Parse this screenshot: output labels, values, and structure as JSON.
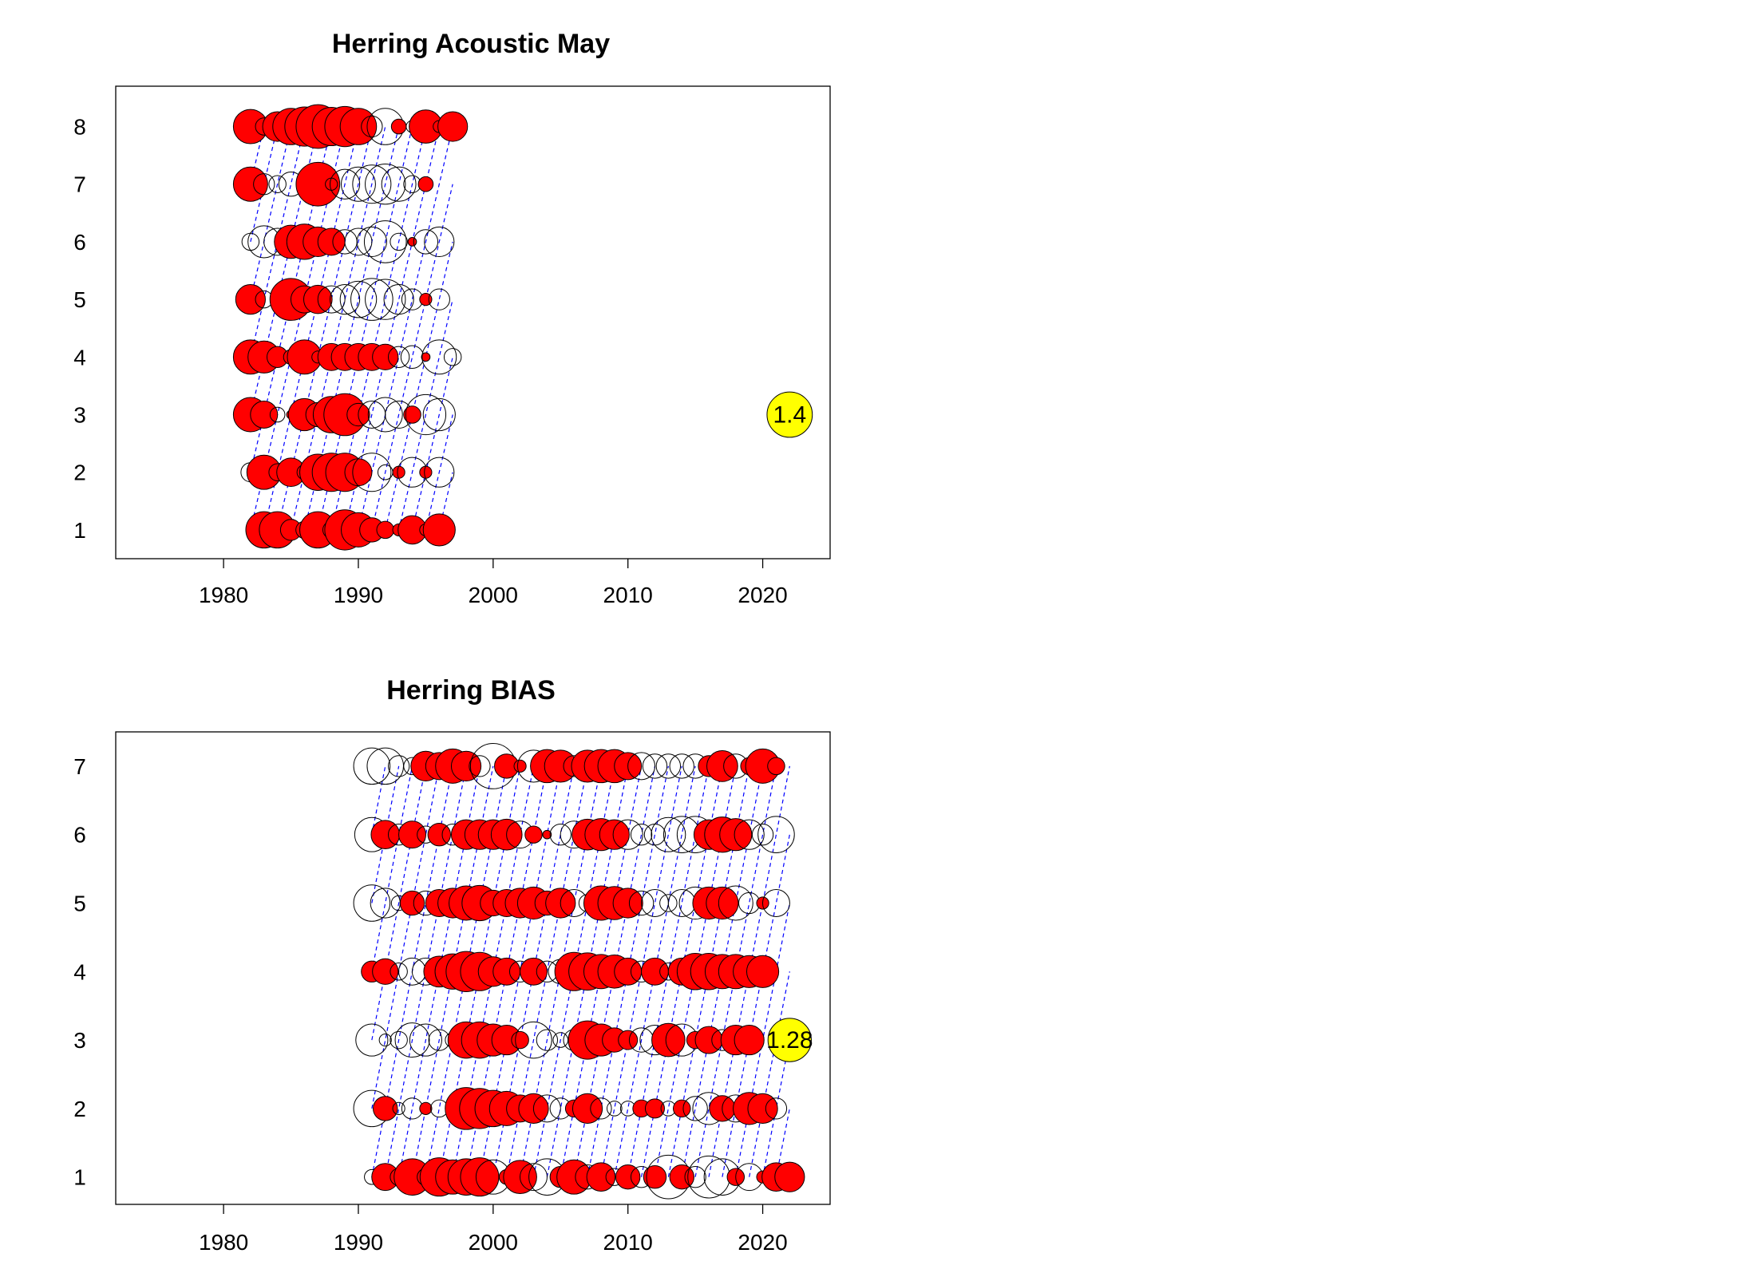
{
  "chart_data": [
    {
      "type": "scatter",
      "subtype": "bubble",
      "title": "Herring Acoustic May",
      "xlim": [
        1972,
        2025
      ],
      "ylim": [
        0.5,
        8.7
      ],
      "x_ticks": [
        1980,
        1990,
        2000,
        2010,
        2020
      ],
      "y_ticks": [
        1,
        2,
        3,
        4,
        5,
        6,
        7,
        8
      ],
      "positive_color": "#ff0000",
      "negative_color": "#ffffff",
      "cohort_line_color": "#0000ff",
      "reference_bubble": {
        "x": 2022,
        "y": 3,
        "value": 1.4,
        "label": "1.4",
        "color": "#ffff00"
      },
      "rows": {
        "1": [
          0.05,
          0.9,
          0.9,
          0.3,
          0.2,
          0.9,
          0.2,
          1.1,
          0.8,
          0.4,
          0.2,
          0.1,
          0.55,
          0.1,
          0.7
        ],
        "2": [
          -0.25,
          0.8,
          0.2,
          0.55,
          0.15,
          0.9,
          1.0,
          1.0,
          0.5,
          -1.0,
          -0.15,
          0.1,
          -0.6,
          0.1,
          -0.6
        ],
        "3": [
          0.8,
          0.5,
          -0.15,
          0.05,
          0.7,
          0.4,
          0.9,
          1.2,
          0.35,
          -0.5,
          -0.8,
          -0.5,
          0.2,
          -1.1,
          -0.7
        ],
        "4": [
          0.8,
          0.7,
          0.3,
          0.15,
          0.8,
          0.1,
          0.5,
          0.5,
          0.5,
          0.5,
          0.45,
          -0.3,
          -0.35,
          0.05,
          -0.8,
          -0.2
        ],
        "5": [
          0.6,
          -0.2,
          0.1,
          1.2,
          0.5,
          0.55,
          -0.5,
          -0.6,
          -0.9,
          -1.2,
          -1.1,
          -0.6,
          -0.3,
          0.1,
          -0.3
        ],
        "6": [
          -0.2,
          -0.7,
          -0.5,
          0.75,
          0.85,
          0.6,
          0.5,
          -0.4,
          -0.5,
          -0.6,
          -1.2,
          -0.2,
          0.05,
          -0.4,
          -0.6
        ],
        "7": [
          0.8,
          -0.3,
          -0.2,
          -0.4,
          0.05,
          1.3,
          0.1,
          -0.6,
          -0.8,
          -1.0,
          -1.1,
          -0.8,
          -0.2,
          0.15
        ]
      },
      "first_years": {
        "1": 1982,
        "2": 1982,
        "3": 1982,
        "4": 1982,
        "5": 1982,
        "6": 1982,
        "7": 1982,
        "8": 1982
      },
      "row_8": [
        0.8,
        0.2,
        0.6,
        0.9,
        1.05,
        1.3,
        1.0,
        1.1,
        0.9,
        -0.3,
        -0.9,
        0.15,
        -0.1,
        0.75,
        -0.1,
        0.6
      ]
    },
    {
      "type": "scatter",
      "subtype": "bubble",
      "title": "Herring BIAS",
      "xlim": [
        1972,
        2025
      ],
      "ylim": [
        0.6,
        7.5
      ],
      "x_ticks": [
        1980,
        1990,
        2000,
        2010,
        2020
      ],
      "y_ticks": [
        1,
        2,
        3,
        4,
        5,
        6,
        7
      ],
      "positive_color": "#ff0000",
      "negative_color": "#ffffff",
      "cohort_line_color": "#0000ff",
      "reference_bubble": {
        "x": 2022,
        "y": 3,
        "value": 1.28,
        "label": "1.28",
        "color": "#ffff00"
      },
      "first_year": 1991,
      "rows": {
        "1": [
          -0.15,
          0.5,
          -0.2,
          0.9,
          -0.2,
          1.0,
          0.8,
          0.9,
          1.0,
          -0.8,
          0.15,
          0.75,
          -0.5,
          -0.9,
          0.3,
          0.8,
          -0.4,
          0.55,
          -0.2,
          0.4,
          -0.3,
          0.35,
          -1.3,
          0.4,
          -0.3,
          -1.2,
          -0.9,
          0.2,
          -0.5,
          0.1,
          0.55,
          0.6
        ],
        "2": [
          -0.9,
          0.4,
          -0.1,
          -0.3,
          0.1,
          -0.2,
          0.1,
          1.2,
          1.1,
          0.9,
          0.8,
          0.5,
          0.6,
          -0.5,
          -0.3,
          0.2,
          0.6,
          -0.3,
          -0.15,
          -0.15,
          0.2,
          0.25,
          -0.15,
          0.2,
          -0.4,
          -0.7,
          0.45,
          -0.5,
          0.7,
          0.6,
          -0.3
        ],
        "3": [
          -0.7,
          -0.1,
          -0.2,
          -0.8,
          -0.7,
          -0.3,
          -0.15,
          0.9,
          0.9,
          0.7,
          0.6,
          0.2,
          -0.9,
          -0.3,
          -0.15,
          -0.3,
          1.0,
          0.7,
          0.4,
          0.25,
          -0.4,
          -0.6,
          0.75,
          -0.7,
          0.2,
          0.5,
          -0.3,
          0.6,
          0.6
        ],
        "4": [
          0.3,
          0.45,
          -0.2,
          -0.5,
          -0.5,
          0.65,
          0.85,
          1.1,
          1.0,
          0.6,
          0.5,
          -0.3,
          0.5,
          -0.3,
          -0.4,
          1.0,
          0.95,
          0.8,
          0.75,
          0.5,
          -0.3,
          0.5,
          -0.2,
          0.5,
          0.9,
          0.9,
          0.8,
          0.8,
          0.7,
          0.7
        ],
        "5": [
          -0.9,
          -0.6,
          -0.15,
          0.4,
          -0.4,
          0.5,
          0.6,
          0.8,
          0.85,
          0.45,
          0.5,
          0.6,
          0.7,
          0.4,
          0.6,
          -0.5,
          -0.2,
          0.8,
          0.75,
          0.6,
          -0.4,
          -0.5,
          -0.2,
          -0.5,
          -0.7,
          0.7,
          0.7,
          -0.8,
          -0.3,
          0.1,
          -0.5
        ],
        "6": [
          -0.8,
          0.55,
          -0.3,
          0.5,
          -0.2,
          0.35,
          -0.3,
          0.6,
          0.6,
          0.6,
          0.65,
          -0.5,
          0.2,
          0.05,
          -0.3,
          -0.5,
          0.65,
          0.7,
          0.6,
          -0.6,
          -0.3,
          -0.3,
          -0.8,
          -0.9,
          -0.9,
          0.6,
          0.85,
          0.7,
          -0.6,
          -0.3,
          -0.9
        ],
        "7": [
          -0.9,
          -0.9,
          -0.3,
          -0.2,
          0.6,
          0.5,
          0.8,
          0.6,
          -0.3,
          -1.4,
          0.4,
          0.1,
          -0.7,
          0.75,
          0.7,
          -0.3,
          0.7,
          0.75,
          0.75,
          0.5,
          -0.5,
          -0.4,
          -0.4,
          -0.4,
          -0.4,
          0.3,
          0.65,
          -0.4,
          0.2,
          0.8,
          0.2
        ]
      }
    }
  ]
}
